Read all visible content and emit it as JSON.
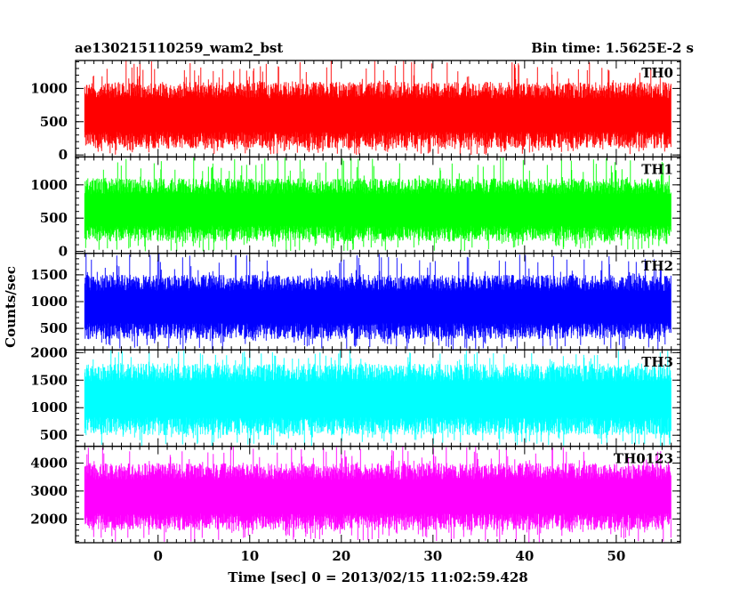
{
  "chart_data": {
    "type": "line",
    "title": "ae130215110259_wam2_bst",
    "bin_time_label": "Bin time: 1.5625E-2 s",
    "xlabel": "Time [sec] 0 = 2013/02/15 11:02:59.428",
    "ylabel": "Counts/sec",
    "xlim": [
      -9,
      57
    ],
    "x_data_range": [
      -8,
      56
    ],
    "x_ticks": [
      0,
      10,
      20,
      30,
      40,
      50
    ],
    "x_tick_labels": [
      "0",
      "10",
      "20",
      "30",
      "40",
      "50"
    ],
    "grid": false,
    "panels": [
      {
        "name": "TH0",
        "color": "#ff0000",
        "ylim": [
          -30,
          1420
        ],
        "y_ticks": [
          0,
          500,
          1000
        ],
        "y_tick_labels": [
          "0",
          "500",
          "1000"
        ],
        "typical_low": 100,
        "typical_high": 1100,
        "min": 0,
        "max": 1420
      },
      {
        "name": "TH1",
        "color": "#00ff00",
        "ylim": [
          -30,
          1420
        ],
        "y_ticks": [
          0,
          500,
          1000
        ],
        "y_tick_labels": [
          "0",
          "500",
          "1000"
        ],
        "typical_low": 150,
        "typical_high": 1100,
        "min": 0,
        "max": 1420
      },
      {
        "name": "TH2",
        "color": "#0000ff",
        "ylim": [
          100,
          1900
        ],
        "y_ticks": [
          500,
          1000,
          1500
        ],
        "y_tick_labels": [
          "500",
          "1000",
          "1500"
        ],
        "typical_low": 300,
        "typical_high": 1500,
        "min": 100,
        "max": 1900
      },
      {
        "name": "TH3",
        "color": "#00ffff",
        "ylim": [
          300,
          2050
        ],
        "y_ticks": [
          500,
          1000,
          1500,
          2000
        ],
        "y_tick_labels": [
          "500",
          "1000",
          "1500",
          "2000"
        ],
        "typical_low": 500,
        "typical_high": 1800,
        "min": 300,
        "max": 2050
      },
      {
        "name": "TH0123",
        "color": "#ff00ff",
        "ylim": [
          1150,
          4600
        ],
        "y_ticks": [
          2000,
          3000,
          4000
        ],
        "y_tick_labels": [
          "2000",
          "3000",
          "4000"
        ],
        "typical_low": 1600,
        "typical_high": 4000,
        "min": 1150,
        "max": 4600
      }
    ]
  }
}
